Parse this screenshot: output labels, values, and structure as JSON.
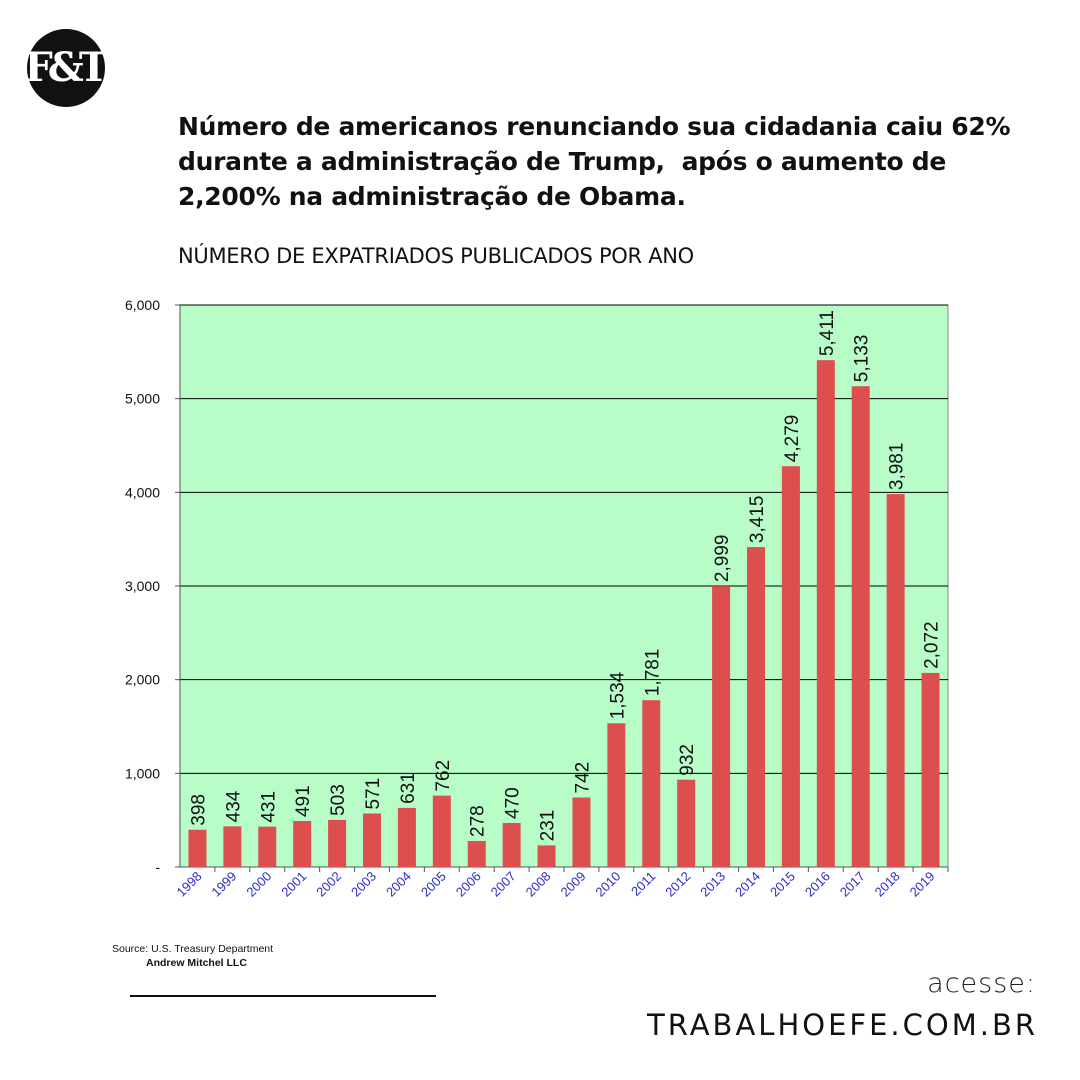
{
  "logo": {
    "text": "F&T"
  },
  "headline": {
    "lines": [
      "Número de americanos renunciando sua cidadania caiu 62%",
      "durante a administração de Trump,  após o aumento de",
      "2,200% na administração de Obama."
    ]
  },
  "subtitle": "NÚMERO DE EXPATRIADOS PUBLICADOS POR ANO",
  "chart_data": {
    "type": "bar",
    "categories": [
      "1998",
      "1999",
      "2000",
      "2001",
      "2002",
      "2003",
      "2004",
      "2005",
      "2006",
      "2007",
      "2008",
      "2009",
      "2010",
      "2011",
      "2012",
      "2013",
      "2014",
      "2015",
      "2016",
      "2017",
      "2018",
      "2019"
    ],
    "values": [
      398,
      434,
      431,
      491,
      503,
      571,
      631,
      762,
      278,
      470,
      231,
      742,
      1534,
      1781,
      932,
      2999,
      3415,
      4279,
      5411,
      5133,
      3981,
      2072
    ],
    "value_labels": [
      "398",
      "434",
      "431",
      "491",
      "503",
      "571",
      "631",
      "762",
      "278",
      "470",
      "231",
      "742",
      "1,534",
      "1,781",
      "932",
      "2,999",
      "3,415",
      "4,279",
      "5,411",
      "5,133",
      "3,981",
      "2,072"
    ],
    "y_ticks": [
      0,
      1000,
      2000,
      3000,
      4000,
      5000,
      6000
    ],
    "y_tick_labels": [
      "-",
      "1,000",
      "2,000",
      "3,000",
      "4,000",
      "5,000",
      "6,000"
    ],
    "ylim": [
      0,
      6000
    ],
    "grid": true,
    "colors": {
      "bar": "#dd4f4f",
      "plot_background": "#b8fcc8",
      "x_tick_label": "#2b2bcf",
      "gridline": "#000000"
    }
  },
  "source": {
    "text": "Source: U.S. Treasury Department",
    "author": "Andrew Mitchel LLC"
  },
  "footer": {
    "access_label": "acesse:",
    "site": "TRABALHOEFE.COM.BR"
  }
}
